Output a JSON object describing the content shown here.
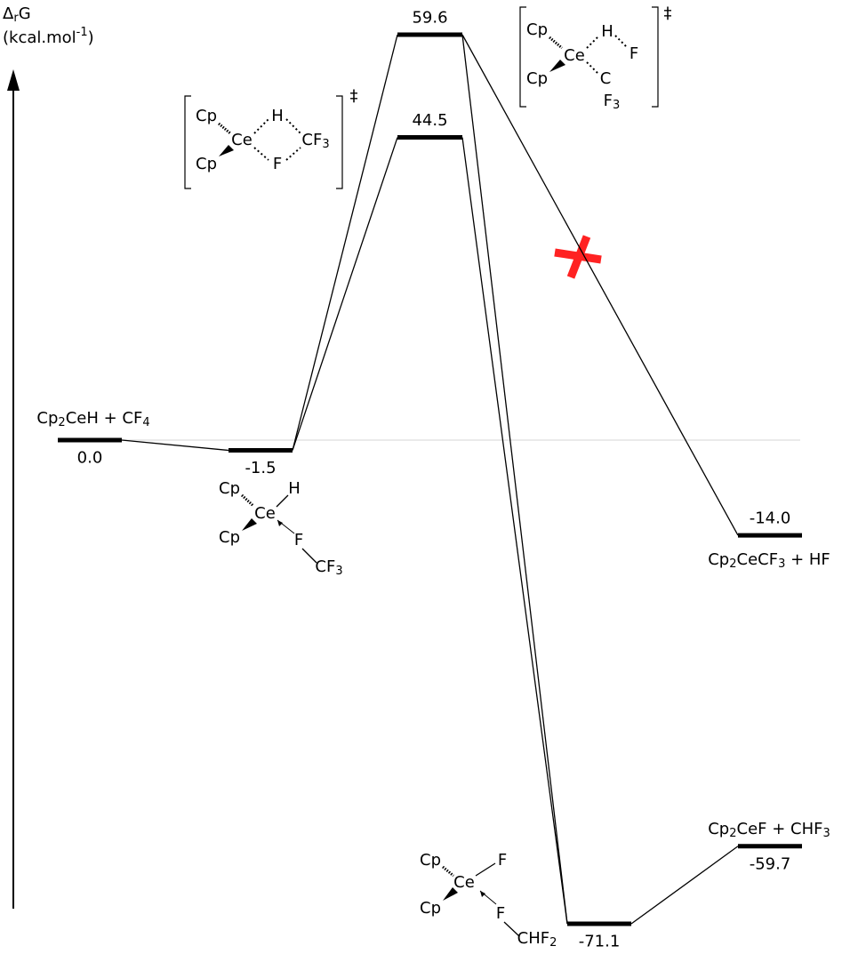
{
  "chart_data": {
    "type": "energy-profile",
    "y_label": [
      [
        "Δ",
        "r",
        "G"
      ],
      [
        "(kcal.mol",
        "-1",
        ")"
      ]
    ],
    "levels": [
      {
        "value": 0.0,
        "label": "0.0",
        "species": [
          "Cp",
          "2",
          "CeH + CF",
          "4"
        ]
      },
      {
        "value": -1.5,
        "label": "-1.5"
      },
      {
        "value": 44.5,
        "label": "44.5"
      },
      {
        "value": 59.6,
        "label": "59.6"
      },
      {
        "value": -71.1,
        "label": "-71.1"
      },
      {
        "value": -14.0,
        "label": "-14.0",
        "species": [
          "Cp",
          "2",
          "CeCF",
          "3",
          " + HF"
        ]
      },
      {
        "value": -59.7,
        "label": "-59.7",
        "species": [
          "Cp",
          "2",
          "CeF + CHF",
          "3"
        ]
      }
    ],
    "structures": [
      {
        "atoms": [
          [
            "Cp"
          ],
          [
            "Ce"
          ],
          [
            "H"
          ],
          [
            "CF",
            "3"
          ],
          [
            "Cp"
          ],
          [
            "F"
          ]
        ],
        "mark": "‡"
      },
      {
        "atoms": [
          [
            "Cp"
          ],
          [
            "Ce"
          ],
          [
            "H"
          ],
          [
            "F"
          ],
          [
            "Cp"
          ],
          [
            "C"
          ],
          [
            "F",
            "3"
          ]
        ],
        "mark": "‡"
      },
      {
        "atoms": [
          [
            "Cp"
          ],
          [
            "Ce"
          ],
          [
            "H"
          ],
          [
            "Cp"
          ],
          [
            "F"
          ],
          [
            "CF",
            "3"
          ]
        ]
      },
      {
        "atoms": [
          [
            "Cp"
          ],
          [
            "Ce"
          ],
          [
            "F"
          ],
          [
            "Cp"
          ],
          [
            "F"
          ],
          [
            "CHF",
            "2"
          ]
        ]
      }
    ]
  }
}
